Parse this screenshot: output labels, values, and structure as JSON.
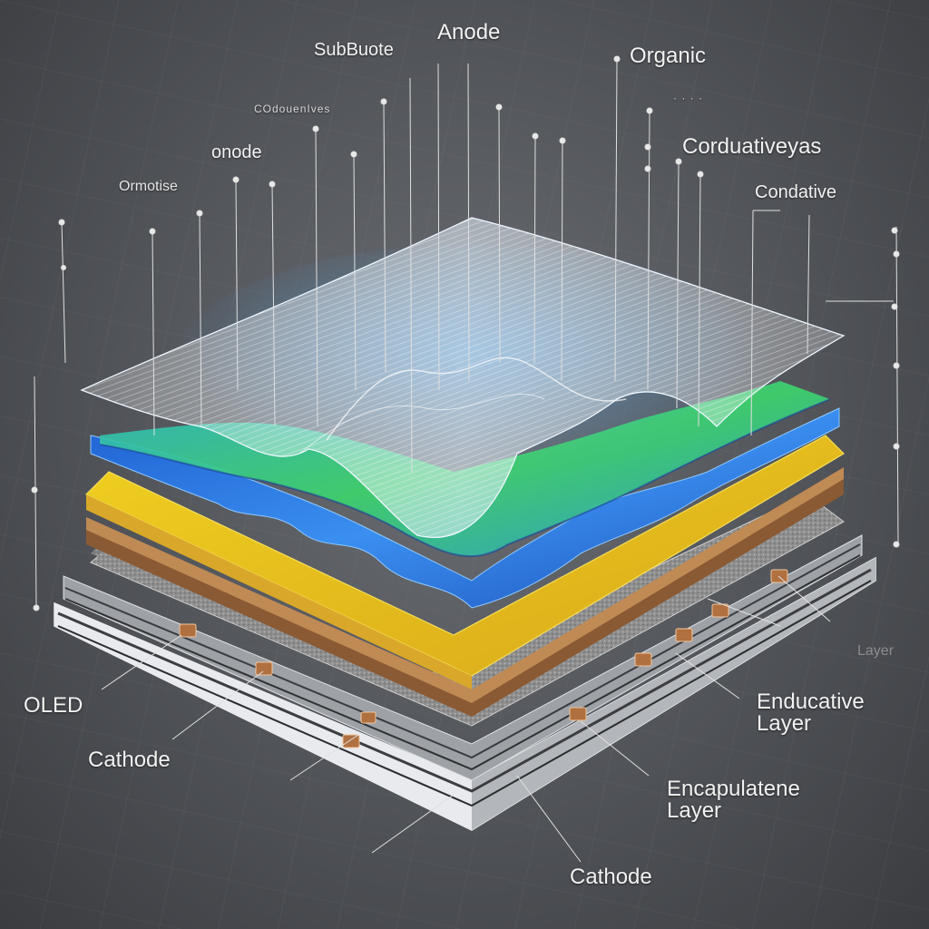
{
  "labels": {
    "substrate": "SubBuote",
    "anode_top": "Anode",
    "organic": "Organic",
    "organic_sub": "· · · ·",
    "conductives": "COdouenIves",
    "onode": "onode",
    "orrmotise": "Ormotise",
    "corduativeyas": "Corduativeyas",
    "condative": "Condative",
    "oled": "OLED",
    "cathode_left": "Cathode",
    "endducative": "Enducative Layer",
    "encapsulatene": "Encapulatene Layer",
    "cathode_bottom": "Cathode",
    "layer_ghost": "Layer"
  },
  "colors": {
    "background": "#55585d",
    "blue_layer": "#2f7fe0",
    "green_layer": "#3ecf6a",
    "yellow_layer": "#e6c21a",
    "copper_layer": "#b07a4a",
    "texture_layer": "#9a9a9a",
    "base_plate": "#d9dbdf",
    "mesh": "#e8f4ff",
    "leader_line": "#e0e0e0"
  }
}
